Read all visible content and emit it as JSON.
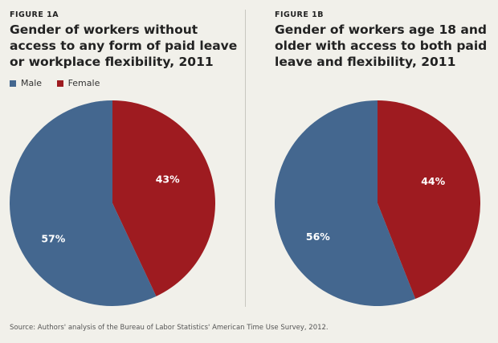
{
  "colors": {
    "male": "#44678f",
    "female": "#9e1b20"
  },
  "legend": {
    "male": "Male",
    "female": "Female"
  },
  "chart_data": [
    {
      "type": "pie",
      "figure_label": "FIGURE 1A",
      "title": "Gender of workers without access to any form of paid leave or workplace flexibility, 2011",
      "slices": [
        {
          "name": "Male",
          "value": 57,
          "label": "57%"
        },
        {
          "name": "Female",
          "value": 43,
          "label": "43%"
        }
      ]
    },
    {
      "type": "pie",
      "figure_label": "FIGURE 1B",
      "title": "Gender of workers age 18 and older with access to both paid leave and flexibility, 2011",
      "slices": [
        {
          "name": "Male",
          "value": 56,
          "label": "56%"
        },
        {
          "name": "Female",
          "value": 44,
          "label": "44%"
        }
      ]
    }
  ],
  "source": "Source: Authors' analysis of the Bureau of Labor Statistics' American Time Use Survey, 2012."
}
